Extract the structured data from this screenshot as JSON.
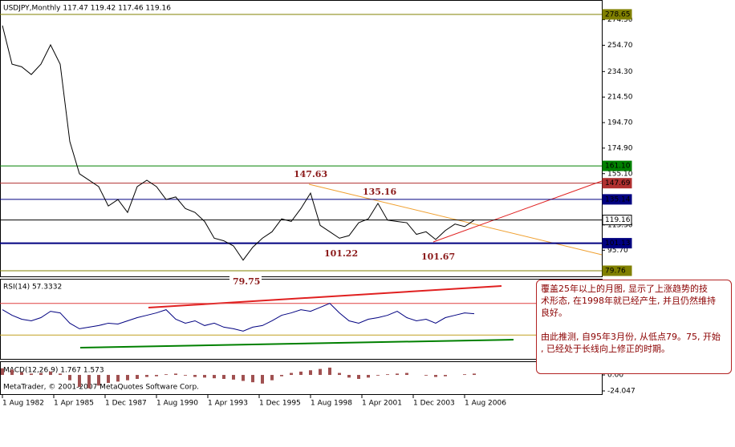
{
  "chart_data": [
    {
      "type": "line",
      "title": "USDJPY,Monthly  117.47 119.42 117.46 119.16",
      "color": "#000000",
      "values": [
        270,
        240,
        238,
        232,
        240,
        255,
        240,
        180,
        155,
        150,
        145,
        130,
        135,
        125,
        145,
        150,
        145,
        135,
        137,
        128,
        125,
        118,
        105,
        103,
        99,
        88,
        98,
        105,
        110,
        120,
        118,
        128,
        140,
        115,
        110,
        105,
        107,
        117,
        120,
        132,
        119,
        118,
        117,
        108,
        110,
        104,
        111,
        116,
        114,
        119
      ],
      "ylim": [
        75.4,
        289.8
      ],
      "yticks": [
        {
          "value": 274.5,
          "label": "274.50"
        },
        {
          "value": 254.7,
          "label": "254.70"
        },
        {
          "value": 234.3,
          "label": "234.30"
        },
        {
          "value": 214.5,
          "label": "214.50"
        },
        {
          "value": 194.7,
          "label": "194.70"
        },
        {
          "value": 174.9,
          "label": "174.90"
        },
        {
          "value": 155.1,
          "label": "155.10"
        },
        {
          "value": 115.3,
          "label": "115.30"
        },
        {
          "value": 95.7,
          "label": "95.70"
        }
      ],
      "levels": [
        {
          "value": 278.65,
          "color": "#808000"
        },
        {
          "value": 161.1,
          "label": "161.10",
          "color": "#008000"
        },
        {
          "value": 147.69,
          "color": "#b03030"
        },
        {
          "value": 135.14,
          "color": "#000080"
        },
        {
          "value": 119.16,
          "color": "#000000"
        },
        {
          "value": 101.13,
          "color": "#000080"
        },
        {
          "value": 79.76,
          "color": "#808000"
        }
      ],
      "annotations": [
        "147.63",
        "135.16",
        "101.22",
        "101.67",
        "79.75"
      ],
      "xtick_labels": [
        "1 Aug 1982",
        "1 Apr 1985",
        "1 Dec 1987",
        "1 Aug 1990",
        "1 Apr 1993",
        "1 Dec 1995",
        "1 Aug 1998",
        "1 Apr 2001",
        "1 Dec 2003",
        "1 Aug 2006"
      ]
    },
    {
      "type": "line",
      "title": "RSI(14) 57.3332",
      "color": "#000080",
      "values": [
        62,
        55,
        50,
        48,
        52,
        60,
        58,
        45,
        38,
        40,
        42,
        45,
        44,
        48,
        52,
        55,
        58,
        62,
        50,
        45,
        48,
        42,
        45,
        40,
        38,
        35,
        40,
        42,
        48,
        55,
        58,
        62,
        60,
        65,
        70,
        58,
        48,
        45,
        50,
        52,
        55,
        60,
        52,
        48,
        50,
        45,
        52,
        55,
        58,
        57
      ],
      "ylim": [
        0,
        100
      ],
      "levels": [
        70,
        30
      ]
    },
    {
      "type": "bar",
      "title": "MACD(12,26,9) 1.767 1.573",
      "color": "#a05050",
      "values": [
        10,
        8,
        4,
        2,
        3,
        5,
        2,
        -8,
        -18,
        -20,
        -16,
        -12,
        -10,
        -8,
        -6,
        -3,
        -2,
        1,
        2,
        -1,
        -3,
        -4,
        -5,
        -6,
        -7,
        -9,
        -11,
        -13,
        -8,
        -2,
        3,
        5,
        7,
        9,
        11,
        3,
        -4,
        -6,
        -4,
        -1,
        1,
        2,
        3,
        0,
        -1,
        -3,
        -2,
        0,
        1,
        2
      ],
      "ylim": [
        -24.047,
        13.293
      ],
      "yticks": [
        13.293,
        {
          "value": 0,
          "label": "0.00"
        },
        -24.047
      ]
    }
  ],
  "note": [
    "覆盖25年以上的月图, 显示了上涨趋势的技",
    "术形态, 在1998年就已经产生, 并且仍然维持",
    "良好。",
    "由此推测, 自95年3月份, 从低点79。75, 开始",
    ", 已经处于长线向上修正的时期。"
  ],
  "footer": "MetaTrader, © 2001-2007 MetaQuotes Software Corp."
}
